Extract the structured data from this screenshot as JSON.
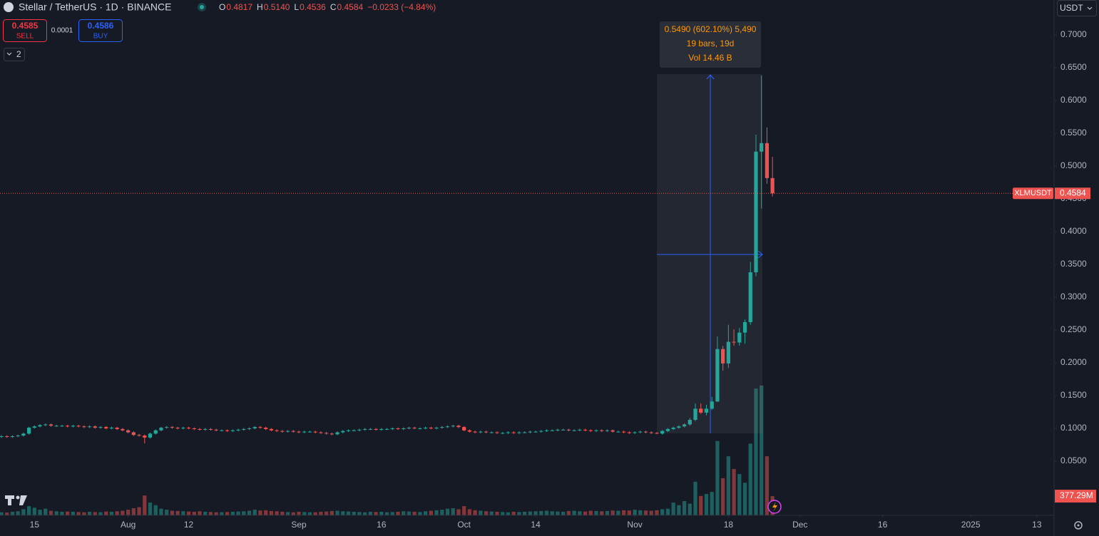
{
  "header": {
    "symbol": "Stellar / TetherUS · 1D · BINANCE",
    "ohlc": [
      {
        "label": "O",
        "value": "0.4817"
      },
      {
        "label": "H",
        "value": "0.5140"
      },
      {
        "label": "L",
        "value": "0.4536"
      },
      {
        "label": "C",
        "value": "0.4584"
      }
    ],
    "change": "−0.0233 (−4.84%)"
  },
  "trade": {
    "sell_price": "0.4585",
    "sell_label": "SELL",
    "spread": "0.0001",
    "buy_price": "0.4586",
    "buy_label": "BUY"
  },
  "indicators_count": "2",
  "currency": "USDT",
  "measure": {
    "change": "0.5490 (602.10%) 5,490",
    "bars": "19 bars, 19d",
    "volume": "Vol 14.46 B"
  },
  "chart_data": {
    "type": "candlestick",
    "up_color": "#26a69a",
    "down_color": "#ef5350",
    "symbol_label": "XLMUSDT",
    "volume_label": "377.29M",
    "xlim": [
      0,
      191
    ],
    "xticks": [
      {
        "value": 6,
        "label": "15"
      },
      {
        "value": 23,
        "label": "Aug"
      },
      {
        "value": 34,
        "label": "12"
      },
      {
        "value": 54,
        "label": "Sep"
      },
      {
        "value": 69,
        "label": "16"
      },
      {
        "value": 84,
        "label": "Oct"
      },
      {
        "value": 97,
        "label": "14"
      },
      {
        "value": 115,
        "label": "Nov"
      },
      {
        "value": 132,
        "label": "18"
      },
      {
        "value": 145,
        "label": "Dec"
      },
      {
        "value": 160,
        "label": "16"
      },
      {
        "value": 176,
        "label": "2025"
      },
      {
        "value": 188,
        "label": "13"
      }
    ],
    "ylim": [
      0,
      0.75
    ],
    "yticks": [
      {
        "value": 0.05,
        "label": "0.0500"
      },
      {
        "value": 0.1,
        "label": "0.1000"
      },
      {
        "value": 0.15,
        "label": "0.1500"
      },
      {
        "value": 0.2,
        "label": "0.2000"
      },
      {
        "value": 0.25,
        "label": "0.2500"
      },
      {
        "value": 0.3,
        "label": "0.3000"
      },
      {
        "value": 0.35,
        "label": "0.3500"
      },
      {
        "value": 0.4,
        "label": "0.4000"
      },
      {
        "value": 0.45,
        "label": "0.4500"
      },
      {
        "value": 0.5,
        "label": "0.5000"
      },
      {
        "value": 0.55,
        "label": "0.5500"
      },
      {
        "value": 0.6,
        "label": "0.6000"
      },
      {
        "value": 0.65,
        "label": "0.6500"
      },
      {
        "value": 0.7,
        "label": "0.7000"
      }
    ],
    "volume_lim": [
      0,
      2800
    ],
    "candles": [
      [
        0.087,
        0.0895,
        0.0855,
        0.088
      ],
      [
        0.088,
        0.0895,
        0.0855,
        0.087
      ],
      [
        0.087,
        0.0895,
        0.0855,
        0.088
      ],
      [
        0.088,
        0.0905,
        0.0865,
        0.089
      ],
      [
        0.089,
        0.0935,
        0.0875,
        0.092
      ],
      [
        0.092,
        0.1025,
        0.0905,
        0.101
      ],
      [
        0.101,
        0.1045,
        0.0995,
        0.103
      ],
      [
        0.103,
        0.1065,
        0.1015,
        0.105
      ],
      [
        0.105,
        0.1075,
        0.1035,
        0.106
      ],
      [
        0.106,
        0.1075,
        0.1025,
        0.104
      ],
      [
        0.104,
        0.1055,
        0.1025,
        0.104
      ],
      [
        0.104,
        0.1055,
        0.1025,
        0.104
      ],
      [
        0.104,
        0.1055,
        0.1015,
        0.103
      ],
      [
        0.103,
        0.1055,
        0.1015,
        0.104
      ],
      [
        0.104,
        0.1055,
        0.1015,
        0.103
      ],
      [
        0.103,
        0.1045,
        0.1005,
        0.102
      ],
      [
        0.102,
        0.1045,
        0.1005,
        0.103
      ],
      [
        0.103,
        0.1045,
        0.0995,
        0.101
      ],
      [
        0.101,
        0.1035,
        0.0995,
        0.102
      ],
      [
        0.102,
        0.1035,
        0.0985,
        0.1
      ],
      [
        0.1,
        0.1025,
        0.0985,
        0.101
      ],
      [
        0.101,
        0.1025,
        0.0975,
        0.099
      ],
      [
        0.099,
        0.1005,
        0.0955,
        0.097
      ],
      [
        0.097,
        0.0985,
        0.0925,
        0.094
      ],
      [
        0.094,
        0.0955,
        0.0885,
        0.09
      ],
      [
        0.09,
        0.0915,
        0.0875,
        0.089
      ],
      [
        0.089,
        0.0905,
        0.077,
        0.086
      ],
      [
        0.086,
        0.0935,
        0.0845,
        0.092
      ],
      [
        0.092,
        0.0985,
        0.0905,
        0.097
      ],
      [
        0.097,
        0.1025,
        0.0955,
        0.101
      ],
      [
        0.101,
        0.1035,
        0.0995,
        0.102
      ],
      [
        0.102,
        0.1035,
        0.0995,
        0.101
      ],
      [
        0.101,
        0.1025,
        0.0985,
        0.1
      ],
      [
        0.1,
        0.1025,
        0.0985,
        0.101
      ],
      [
        0.101,
        0.1025,
        0.0985,
        0.1
      ],
      [
        0.1,
        0.1015,
        0.0975,
        0.099
      ],
      [
        0.099,
        0.1005,
        0.0965,
        0.098
      ],
      [
        0.098,
        0.1005,
        0.0965,
        0.099
      ],
      [
        0.099,
        0.1005,
        0.0965,
        0.098
      ],
      [
        0.098,
        0.0995,
        0.0955,
        0.097
      ],
      [
        0.097,
        0.0985,
        0.0955,
        0.097
      ],
      [
        0.097,
        0.0985,
        0.0945,
        0.096
      ],
      [
        0.096,
        0.0985,
        0.0945,
        0.097
      ],
      [
        0.097,
        0.0995,
        0.0955,
        0.098
      ],
      [
        0.098,
        0.1005,
        0.0965,
        0.099
      ],
      [
        0.099,
        0.1015,
        0.0975,
        0.1
      ],
      [
        0.1,
        0.1035,
        0.0985,
        0.102
      ],
      [
        0.102,
        0.1035,
        0.0995,
        0.101
      ],
      [
        0.101,
        0.1025,
        0.0975,
        0.099
      ],
      [
        0.099,
        0.1005,
        0.0955,
        0.097
      ],
      [
        0.097,
        0.0985,
        0.0945,
        0.096
      ],
      [
        0.096,
        0.0975,
        0.0935,
        0.095
      ],
      [
        0.095,
        0.0975,
        0.0935,
        0.096
      ],
      [
        0.096,
        0.0975,
        0.0935,
        0.095
      ],
      [
        0.095,
        0.0965,
        0.0925,
        0.094
      ],
      [
        0.094,
        0.0965,
        0.0925,
        0.095
      ],
      [
        0.095,
        0.0965,
        0.0935,
        0.095
      ],
      [
        0.095,
        0.0965,
        0.0925,
        0.094
      ],
      [
        0.094,
        0.0955,
        0.0915,
        0.093
      ],
      [
        0.093,
        0.0945,
        0.0905,
        0.092
      ],
      [
        0.092,
        0.0935,
        0.0895,
        0.091
      ],
      [
        0.091,
        0.0955,
        0.0895,
        0.094
      ],
      [
        0.094,
        0.0975,
        0.0925,
        0.096
      ],
      [
        0.096,
        0.0985,
        0.0945,
        0.097
      ],
      [
        0.097,
        0.0985,
        0.0955,
        0.097
      ],
      [
        0.097,
        0.0995,
        0.0955,
        0.098
      ],
      [
        0.098,
        0.1005,
        0.0965,
        0.099
      ],
      [
        0.099,
        0.1005,
        0.0975,
        0.099
      ],
      [
        0.099,
        0.1005,
        0.0965,
        0.098
      ],
      [
        0.098,
        0.1005,
        0.0965,
        0.099
      ],
      [
        0.099,
        0.1005,
        0.0975,
        0.099
      ],
      [
        0.099,
        0.1015,
        0.0975,
        0.1
      ],
      [
        0.1,
        0.1015,
        0.0975,
        0.099
      ],
      [
        0.099,
        0.1015,
        0.0975,
        0.1
      ],
      [
        0.1,
        0.1025,
        0.0985,
        0.101
      ],
      [
        0.101,
        0.1025,
        0.0985,
        0.1
      ],
      [
        0.1,
        0.1015,
        0.0985,
        0.1
      ],
      [
        0.1,
        0.1025,
        0.0985,
        0.101
      ],
      [
        0.101,
        0.1025,
        0.0985,
        0.1
      ],
      [
        0.1,
        0.1025,
        0.0985,
        0.101
      ],
      [
        0.101,
        0.1035,
        0.0995,
        0.102
      ],
      [
        0.102,
        0.1045,
        0.1005,
        0.103
      ],
      [
        0.103,
        0.1055,
        0.1015,
        0.104
      ],
      [
        0.104,
        0.1055,
        0.1005,
        0.102
      ],
      [
        0.102,
        0.1035,
        0.0955,
        0.097
      ],
      [
        0.097,
        0.0985,
        0.0935,
        0.095
      ],
      [
        0.095,
        0.0965,
        0.0925,
        0.094
      ],
      [
        0.094,
        0.0965,
        0.0925,
        0.095
      ],
      [
        0.095,
        0.0965,
        0.0925,
        0.094
      ],
      [
        0.094,
        0.0955,
        0.0925,
        0.094
      ],
      [
        0.094,
        0.0955,
        0.0915,
        0.093
      ],
      [
        0.093,
        0.0945,
        0.0915,
        0.093
      ],
      [
        0.093,
        0.0955,
        0.0915,
        0.094
      ],
      [
        0.094,
        0.0955,
        0.0915,
        0.093
      ],
      [
        0.093,
        0.0955,
        0.0915,
        0.094
      ],
      [
        0.094,
        0.0955,
        0.0925,
        0.094
      ],
      [
        0.094,
        0.0965,
        0.0925,
        0.095
      ],
      [
        0.095,
        0.0965,
        0.0935,
        0.095
      ],
      [
        0.095,
        0.0975,
        0.0935,
        0.096
      ],
      [
        0.096,
        0.0985,
        0.0945,
        0.097
      ],
      [
        0.097,
        0.0985,
        0.0955,
        0.097
      ],
      [
        0.097,
        0.0995,
        0.0955,
        0.098
      ],
      [
        0.098,
        0.0995,
        0.0965,
        0.098
      ],
      [
        0.098,
        0.0995,
        0.0955,
        0.097
      ],
      [
        0.097,
        0.0985,
        0.0955,
        0.097
      ],
      [
        0.097,
        0.0995,
        0.0955,
        0.098
      ],
      [
        0.098,
        0.0995,
        0.0955,
        0.097
      ],
      [
        0.097,
        0.0985,
        0.0945,
        0.096
      ],
      [
        0.096,
        0.0985,
        0.0945,
        0.097
      ],
      [
        0.097,
        0.0985,
        0.0945,
        0.096
      ],
      [
        0.096,
        0.0985,
        0.0945,
        0.097
      ],
      [
        0.097,
        0.0985,
        0.0935,
        0.095
      ],
      [
        0.095,
        0.0965,
        0.0935,
        0.095
      ],
      [
        0.095,
        0.0965,
        0.0925,
        0.094
      ],
      [
        0.094,
        0.0955,
        0.0915,
        0.093
      ],
      [
        0.093,
        0.0955,
        0.0915,
        0.094
      ],
      [
        0.094,
        0.0965,
        0.0925,
        0.095
      ],
      [
        0.095,
        0.0965,
        0.0925,
        0.094
      ],
      [
        0.094,
        0.0955,
        0.0915,
        0.093
      ],
      [
        0.093,
        0.0945,
        0.0912,
        0.092
      ],
      [
        0.092,
        0.0975,
        0.0905,
        0.096
      ],
      [
        0.096,
        0.1005,
        0.0945,
        0.099
      ],
      [
        0.099,
        0.1025,
        0.0975,
        0.101
      ],
      [
        0.101,
        0.1045,
        0.0995,
        0.103
      ],
      [
        0.103,
        0.1075,
        0.1015,
        0.106
      ],
      [
        0.106,
        0.116,
        0.104,
        0.113
      ],
      [
        0.113,
        0.138,
        0.111,
        0.13
      ],
      [
        0.13,
        0.138,
        0.122,
        0.124
      ],
      [
        0.124,
        0.136,
        0.12,
        0.13
      ],
      [
        0.13,
        0.148,
        0.128,
        0.141
      ],
      [
        0.141,
        0.24,
        0.14,
        0.221
      ],
      [
        0.221,
        0.226,
        0.188,
        0.199
      ],
      [
        0.199,
        0.258,
        0.192,
        0.232
      ],
      [
        0.232,
        0.251,
        0.226,
        0.231
      ],
      [
        0.231,
        0.253,
        0.226,
        0.246
      ],
      [
        0.246,
        0.266,
        0.229,
        0.262
      ],
      [
        0.262,
        0.354,
        0.258,
        0.338
      ],
      [
        0.338,
        0.548,
        0.332,
        0.522
      ],
      [
        0.522,
        0.638,
        0.435,
        0.535
      ],
      [
        0.535,
        0.559,
        0.473,
        0.4817
      ],
      [
        0.4817,
        0.514,
        0.4536,
        0.4584
      ]
    ],
    "volumes": [
      60,
      55,
      70,
      80,
      120,
      180,
      150,
      110,
      130,
      90,
      80,
      70,
      75,
      70,
      65,
      60,
      70,
      65,
      60,
      75,
      70,
      80,
      90,
      110,
      140,
      160,
      390,
      250,
      200,
      130,
      110,
      90,
      85,
      80,
      75,
      70,
      80,
      70,
      65,
      60,
      60,
      65,
      70,
      75,
      80,
      90,
      110,
      95,
      100,
      85,
      80,
      70,
      65,
      60,
      70,
      65,
      60,
      60,
      70,
      75,
      85,
      90,
      80,
      75,
      70,
      65,
      60,
      70,
      65,
      70,
      60,
      65,
      70,
      80,
      75,
      70,
      65,
      80,
      90,
      100,
      110,
      130,
      140,
      120,
      180,
      120,
      100,
      90,
      80,
      75,
      70,
      65,
      60,
      70,
      65,
      70,
      75,
      80,
      85,
      90,
      80,
      75,
      70,
      85,
      90,
      80,
      75,
      90,
      85,
      80,
      85,
      95,
      90,
      100,
      95,
      110,
      100,
      95,
      90,
      100,
      120,
      130,
      250,
      200,
      280,
      230,
      660,
      380,
      420,
      460,
      1460,
      730,
      1160,
      910,
      810,
      640,
      1410,
      2490,
      2550,
      1160,
      377.29
    ]
  }
}
